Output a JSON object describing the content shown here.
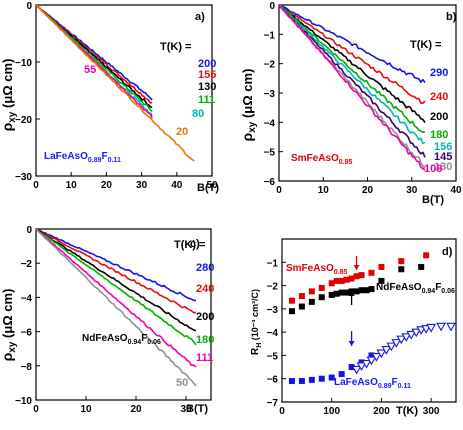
{
  "chart_data": [
    {
      "type": "line",
      "panel_label": "a)",
      "xlabel": "B(T)",
      "ylabel_main": "ρ",
      "ylabel_sub": "xy",
      "ylabel_unit": "(μΩ cm)",
      "xlim": [
        0,
        50
      ],
      "ylim": [
        -30,
        0
      ],
      "xticks": [
        0,
        10,
        20,
        30,
        40,
        50
      ],
      "yticks": [
        0,
        -10,
        -20,
        -30
      ],
      "legend_title": "T(K) =",
      "compound": {
        "main": "LaFeAsO",
        "s1": "0.89",
        "mid": "F",
        "s2": "0.11",
        "color": "#1a1aff"
      },
      "series": [
        {
          "name": "200",
          "color": "#1515e0",
          "x": [
            0,
            33
          ],
          "y": [
            0,
            -16.5
          ]
        },
        {
          "name": "155",
          "color": "#e01010",
          "x": [
            0,
            33
          ],
          "y": [
            0,
            -17.2
          ]
        },
        {
          "name": "130",
          "color": "#000000",
          "x": [
            0,
            33
          ],
          "y": [
            0,
            -18.0
          ]
        },
        {
          "name": "111",
          "color": "#00b000",
          "x": [
            0,
            33
          ],
          "y": [
            0,
            -18.6
          ]
        },
        {
          "name": "80",
          "color": "#00b8b8",
          "x": [
            0,
            33
          ],
          "y": [
            0,
            -19.3
          ]
        },
        {
          "name": "55",
          "color": "#ee00aa",
          "x": [
            0,
            33
          ],
          "y": [
            0,
            -19.6
          ]
        },
        {
          "name": "20",
          "color": "#e87800",
          "x": [
            0,
            45
          ],
          "y": [
            0,
            -27.5
          ]
        }
      ]
    },
    {
      "type": "line",
      "panel_label": "b)",
      "xlabel": "B(T)",
      "ylabel_main": "ρ",
      "ylabel_sub": "xy",
      "ylabel_unit": "(μΩ cm)",
      "xlim": [
        0,
        40
      ],
      "ylim": [
        -6,
        0
      ],
      "xticks": [
        0,
        10,
        20,
        30,
        40
      ],
      "yticks": [
        0,
        -1,
        -2,
        -3,
        -4,
        -5,
        -6
      ],
      "legend_title": "T(K) =",
      "compound": {
        "main": "SmFeAsO",
        "s1": "0.85",
        "mid": "",
        "s2": "",
        "color": "#e00000"
      },
      "series": [
        {
          "name": "290",
          "color": "#1515e0",
          "x": [
            0,
            33
          ],
          "y": [
            0,
            -2.65
          ]
        },
        {
          "name": "240",
          "color": "#e01010",
          "x": [
            0,
            33
          ],
          "y": [
            0,
            -3.35
          ]
        },
        {
          "name": "200",
          "color": "#000000",
          "x": [
            0,
            33
          ],
          "y": [
            0,
            -3.95
          ]
        },
        {
          "name": "180",
          "color": "#00b000",
          "x": [
            0,
            33
          ],
          "y": [
            0,
            -4.4
          ]
        },
        {
          "name": "156",
          "color": "#00b8b8",
          "x": [
            0,
            33
          ],
          "y": [
            0,
            -4.75
          ]
        },
        {
          "name": "145",
          "color": "#3a0070",
          "x": [
            0,
            33
          ],
          "y": [
            0,
            -5.15
          ]
        },
        {
          "name": "130",
          "color": "#909090",
          "x": [
            0,
            33
          ],
          "y": [
            0,
            -5.5
          ]
        },
        {
          "name": "108",
          "color": "#ee00aa",
          "x": [
            0,
            33
          ],
          "y": [
            0,
            -5.65
          ]
        }
      ]
    },
    {
      "type": "line",
      "panel_label": "c)",
      "xlabel": "B(T)",
      "ylabel_main": "ρ",
      "ylabel_sub": "xy",
      "ylabel_unit": "(μΩ cm)",
      "xlim": [
        0,
        35
      ],
      "ylim": [
        -10,
        0
      ],
      "xticks": [
        0,
        10,
        20,
        30
      ],
      "yticks": [
        0,
        -2,
        -4,
        -6,
        -8,
        -10
      ],
      "legend_title": "T(K) =",
      "compound": {
        "main": "NdFeAsO",
        "s1": "0.94",
        "mid": "F",
        "s2": "0.06",
        "color": "#000000"
      },
      "series": [
        {
          "name": "280",
          "color": "#1515e0",
          "x": [
            0,
            32
          ],
          "y": [
            0,
            -4.2
          ]
        },
        {
          "name": "240",
          "color": "#e01010",
          "x": [
            0,
            32
          ],
          "y": [
            0,
            -4.95
          ]
        },
        {
          "name": "200",
          "color": "#000000",
          "x": [
            0,
            32
          ],
          "y": [
            0,
            -6.0
          ]
        },
        {
          "name": "180",
          "color": "#00b000",
          "x": [
            0,
            32
          ],
          "y": [
            0,
            -6.7
          ]
        },
        {
          "name": "111",
          "color": "#ee00aa",
          "x": [
            0,
            32
          ],
          "y": [
            0,
            -8.15
          ]
        },
        {
          "name": "50",
          "color": "#909090",
          "x": [
            0,
            32
          ],
          "y": [
            0,
            -9.1
          ]
        }
      ]
    },
    {
      "type": "scatter",
      "panel_label": "d)",
      "xlabel": "T(K)",
      "ylabel_main": "R",
      "ylabel_sub": "H",
      "ylabel_unit": "(10⁻³ cm³/C)",
      "xlim": [
        0,
        350
      ],
      "ylim": [
        -7,
        0
      ],
      "xticks": [
        0,
        100,
        200,
        300
      ],
      "yticks": [
        -1,
        -2,
        -3,
        -4,
        -5,
        -6,
        -7
      ],
      "series": [
        {
          "name": "SmFeAsO0.85",
          "marker": "square",
          "color": "#e00000",
          "x": [
            20,
            40,
            60,
            80,
            100,
            110,
            120,
            130,
            140,
            150,
            160,
            180,
            200,
            240,
            290
          ],
          "y": [
            -2.65,
            -2.45,
            -2.25,
            -2.1,
            -1.9,
            -1.8,
            -1.8,
            -1.75,
            -1.7,
            -1.6,
            -1.55,
            -1.45,
            -1.2,
            -0.95,
            -0.7
          ]
        },
        {
          "name": "NdFeAsO0.94F0.06",
          "marker": "square",
          "color": "#000000",
          "x": [
            20,
            40,
            60,
            80,
            100,
            110,
            120,
            130,
            140,
            150,
            160,
            170,
            180,
            200,
            240,
            280
          ],
          "y": [
            -3.1,
            -2.9,
            -2.7,
            -2.5,
            -2.4,
            -2.35,
            -2.3,
            -2.3,
            -2.25,
            -2.25,
            -2.2,
            -2.2,
            -2.15,
            -1.8,
            -1.3,
            -1.2
          ]
        },
        {
          "name": "LaFeAsO0.89F0.11",
          "marker": "square",
          "color": "#1515e0",
          "x": [
            20,
            40,
            60,
            80,
            100,
            120,
            140,
            160,
            180
          ],
          "y": [
            -6.1,
            -6.1,
            -6.05,
            -6.0,
            -5.95,
            -5.8,
            -5.5,
            -5.3,
            -5.0
          ]
        },
        {
          "name": "LaFeAsO0.89F0.11 (open)",
          "marker": "triangle-down-open",
          "color": "#1515e0",
          "x": [
            150,
            160,
            170,
            180,
            190,
            200,
            210,
            220,
            230,
            240,
            250,
            260,
            270,
            280,
            290,
            300,
            320,
            340
          ],
          "y": [
            -5.6,
            -5.45,
            -5.35,
            -5.2,
            -5.05,
            -4.9,
            -4.75,
            -4.6,
            -4.45,
            -4.3,
            -4.2,
            -4.1,
            -4.0,
            -3.9,
            -3.85,
            -3.8,
            -3.75,
            -3.75
          ]
        }
      ],
      "labels": [
        {
          "main": "SmFeAsO",
          "s1": "0.85",
          "mid": "",
          "s2": "",
          "color": "#e00000"
        },
        {
          "main": "NdFeAsO",
          "s1": "0.94",
          "mid": "F",
          "s2": "0.06",
          "color": "#000000"
        },
        {
          "main": "LaFeAsO",
          "s1": "0.89",
          "mid": "F",
          "s2": "0.11",
          "color": "#1a1aff"
        }
      ]
    }
  ]
}
